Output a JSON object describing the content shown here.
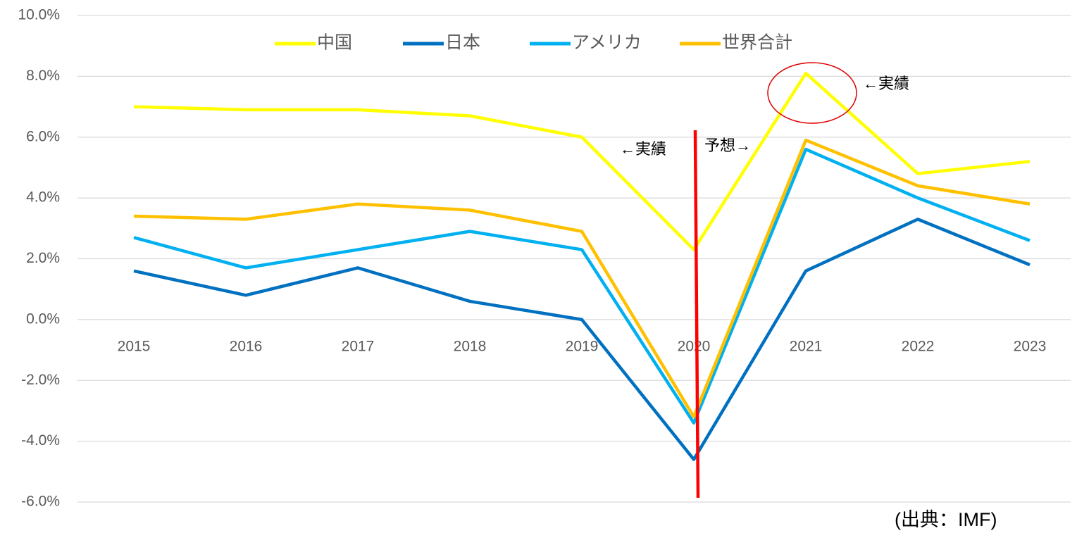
{
  "chart_data": {
    "type": "line",
    "categories": [
      "2015",
      "2016",
      "2017",
      "2018",
      "2019",
      "2020",
      "2021",
      "2022",
      "2023"
    ],
    "series": [
      {
        "name": "中国",
        "color": "#ffff00",
        "values": [
          7.0,
          6.9,
          6.9,
          6.7,
          6.0,
          2.3,
          8.1,
          4.8,
          5.2
        ]
      },
      {
        "name": "日本",
        "color": "#0070c0",
        "values": [
          1.6,
          0.8,
          1.7,
          0.6,
          0.0,
          -4.6,
          1.6,
          3.3,
          1.8
        ]
      },
      {
        "name": "アメリカ",
        "color": "#00b0f0",
        "values": [
          2.7,
          1.7,
          2.3,
          2.9,
          2.3,
          -3.4,
          5.6,
          4.0,
          2.6
        ]
      },
      {
        "name": "世界合計",
        "color": "#ffc000",
        "values": [
          3.4,
          3.3,
          3.8,
          3.6,
          2.9,
          -3.2,
          5.9,
          4.4,
          3.8
        ]
      }
    ],
    "ylim": [
      -6,
      10
    ],
    "yticks": [
      {
        "value": -6,
        "label": "-6.0%"
      },
      {
        "value": -4,
        "label": "-4.0%"
      },
      {
        "value": -2,
        "label": "-2.0%"
      },
      {
        "value": 0,
        "label": "0.0%"
      },
      {
        "value": 2,
        "label": "2.0%"
      },
      {
        "value": 4,
        "label": "4.0%"
      },
      {
        "value": 6,
        "label": "6.0%"
      },
      {
        "value": 8,
        "label": "8.0%"
      },
      {
        "value": 10,
        "label": "10.0%"
      }
    ],
    "grid": true,
    "legend": "top",
    "annotations": [
      "←実績",
      "予想→",
      "←実績",
      "(出典：IMF)"
    ]
  }
}
